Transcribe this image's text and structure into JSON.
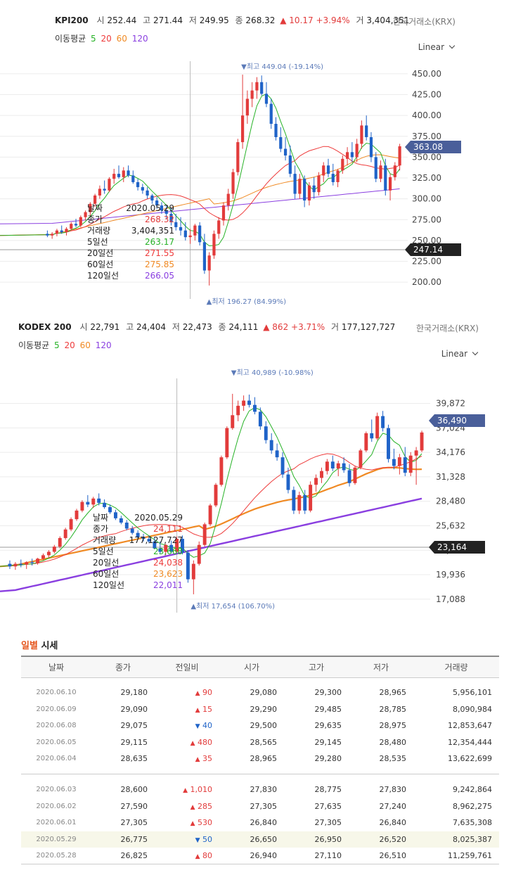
{
  "kpi": {
    "name": "KPI200",
    "open_label": "시",
    "open": "252.44",
    "high_label": "고",
    "high": "271.44",
    "low_label": "저",
    "low": "249.95",
    "close_label": "종",
    "close": "268.32",
    "change": "▲ 10.17 +3.94%",
    "volume_label": "거",
    "volume": "3,404,351",
    "source": "한국거래소(KRX)",
    "ma_label": "이동평균",
    "ma5": "5",
    "ma20": "20",
    "ma60": "60",
    "ma120": "120",
    "scale": "Linear",
    "current_price_tag": "363.08",
    "crosshair_tag": "247.14",
    "max_label": "▼최고 449.04 (-19.14%)",
    "min_label": "▲최저 196.27 (84.99%)",
    "tooltip": [
      {
        "k": "날짜",
        "v": "2020.05.29"
      },
      {
        "k": "종가",
        "v": "268.32"
      },
      {
        "k": "거래량",
        "v": "3,404,351"
      },
      {
        "k": "5일선",
        "v": "263.17"
      },
      {
        "k": "20일선",
        "v": "271.55"
      },
      {
        "k": "60일선",
        "v": "275.85"
      },
      {
        "k": "120일선",
        "v": "266.05"
      }
    ]
  },
  "kodex": {
    "name": "KODEX 200",
    "open_label": "시",
    "open": "22,791",
    "high_label": "고",
    "high": "24,404",
    "low_label": "저",
    "low": "22,473",
    "close_label": "종",
    "close": "24,111",
    "change": "▲ 862 +3.71%",
    "volume_label": "거",
    "volume": "177,127,727",
    "source": "한국거래소(KRX)",
    "ma_label": "이동평균",
    "ma5": "5",
    "ma20": "20",
    "ma60": "60",
    "ma120": "120",
    "scale": "Linear",
    "current_price_tag": "36,490",
    "crosshair_tag": "23,164",
    "max_label": "▼최고 40,989 (-10.98%)",
    "min_label": "▲최저 17,654 (106.70%)",
    "tooltip": [
      {
        "k": "날짜",
        "v": "2020.05.29"
      },
      {
        "k": "종가",
        "v": "24,111"
      },
      {
        "k": "거래량",
        "v": "177,127,727"
      },
      {
        "k": "5일선",
        "v": "23,668"
      },
      {
        "k": "20일선",
        "v": "24,038"
      },
      {
        "k": "60일선",
        "v": "23,623"
      },
      {
        "k": "120일선",
        "v": "22,011"
      }
    ]
  },
  "colors": {
    "up": "#e23b3b",
    "down": "#1f63c8",
    "ma5": "#26b226",
    "ma20": "#ee3b3b",
    "ma60": "#f08a24",
    "ma120": "#8a3fe0",
    "price_tag": "#4a5f9a",
    "cross_tag": "#222222"
  },
  "chart_data": [
    {
      "type": "candlestick",
      "title": "KPI200",
      "ylim": [
        190,
        455
      ],
      "yticks": [
        "450.00",
        "425.00",
        "400.00",
        "375.00",
        "350.00",
        "325.00",
        "300.00",
        "275.00",
        "250.00",
        "225.00",
        "200.00"
      ],
      "ytick_values": [
        450,
        425,
        400,
        375,
        350,
        325,
        300,
        275,
        250,
        225,
        200
      ],
      "ohlc": [
        [
          258,
          262,
          254,
          256
        ],
        [
          256,
          260,
          252,
          258
        ],
        [
          258,
          264,
          255,
          262
        ],
        [
          262,
          268,
          258,
          260
        ],
        [
          260,
          266,
          256,
          264
        ],
        [
          264,
          272,
          262,
          270
        ],
        [
          270,
          276,
          266,
          268
        ],
        [
          268,
          280,
          266,
          278
        ],
        [
          278,
          286,
          274,
          284
        ],
        [
          284,
          296,
          280,
          294
        ],
        [
          294,
          306,
          290,
          304
        ],
        [
          304,
          316,
          300,
          312
        ],
        [
          312,
          322,
          306,
          310
        ],
        [
          310,
          326,
          308,
          324
        ],
        [
          324,
          336,
          318,
          330
        ],
        [
          330,
          340,
          324,
          326
        ],
        [
          326,
          338,
          320,
          334
        ],
        [
          334,
          340,
          326,
          328
        ],
        [
          328,
          334,
          318,
          320
        ],
        [
          320,
          324,
          310,
          314
        ],
        [
          314,
          318,
          306,
          310
        ],
        [
          310,
          314,
          300,
          304
        ],
        [
          304,
          306,
          294,
          298
        ],
        [
          298,
          302,
          288,
          292
        ],
        [
          292,
          296,
          282,
          286
        ],
        [
          286,
          292,
          276,
          282
        ],
        [
          282,
          290,
          268,
          272
        ],
        [
          272,
          282,
          262,
          266
        ],
        [
          266,
          278,
          256,
          262
        ],
        [
          262,
          272,
          250,
          254
        ],
        [
          254,
          264,
          246,
          256
        ],
        [
          256,
          270,
          250,
          268
        ],
        [
          268,
          272,
          244,
          248
        ],
        [
          248,
          258,
          210,
          214
        ],
        [
          214,
          236,
          196,
          232
        ],
        [
          232,
          262,
          228,
          258
        ],
        [
          258,
          278,
          252,
          274
        ],
        [
          274,
          296,
          268,
          292
        ],
        [
          292,
          312,
          286,
          306
        ],
        [
          306,
          336,
          300,
          332
        ],
        [
          332,
          372,
          328,
          368
        ],
        [
          368,
          449,
          360,
          400
        ],
        [
          400,
          430,
          390,
          420
        ],
        [
          420,
          440,
          410,
          430
        ],
        [
          430,
          446,
          420,
          440
        ],
        [
          440,
          448,
          424,
          426
        ],
        [
          426,
          440,
          410,
          414
        ],
        [
          414,
          420,
          384,
          390
        ],
        [
          390,
          398,
          370,
          374
        ],
        [
          374,
          386,
          356,
          360
        ],
        [
          360,
          374,
          346,
          352
        ],
        [
          352,
          364,
          326,
          330
        ],
        [
          330,
          340,
          300,
          306
        ],
        [
          306,
          330,
          300,
          324
        ],
        [
          324,
          328,
          290,
          298
        ],
        [
          298,
          320,
          292,
          316
        ],
        [
          316,
          326,
          300,
          308
        ],
        [
          308,
          332,
          304,
          328
        ],
        [
          328,
          344,
          320,
          340
        ],
        [
          340,
          348,
          326,
          330
        ],
        [
          330,
          342,
          316,
          320
        ],
        [
          320,
          336,
          314,
          334
        ],
        [
          334,
          352,
          330,
          348
        ],
        [
          348,
          362,
          340,
          356
        ],
        [
          356,
          368,
          344,
          350
        ],
        [
          350,
          372,
          344,
          366
        ],
        [
          366,
          394,
          360,
          388
        ],
        [
          388,
          400,
          370,
          374
        ],
        [
          374,
          380,
          344,
          350
        ],
        [
          350,
          356,
          320,
          324
        ],
        [
          324,
          346,
          320,
          340
        ],
        [
          340,
          348,
          304,
          310
        ],
        [
          310,
          330,
          298,
          326
        ],
        [
          326,
          344,
          322,
          340
        ],
        [
          340,
          366,
          334,
          363
        ]
      ],
      "series": [
        {
          "name": "5",
          "color": "#26b226"
        },
        {
          "name": "20",
          "color": "#ee3b3b"
        },
        {
          "name": "60",
          "color": "#f08a24"
        },
        {
          "name": "120",
          "color": "#8a3fe0"
        }
      ]
    },
    {
      "type": "candlestick",
      "title": "KODEX 200",
      "ylim": [
        16500,
        41800
      ],
      "yticks": [
        "39,872",
        "37,024",
        "34,176",
        "31,328",
        "28,480",
        "25,632",
        "22,784",
        "19,936",
        "17,088"
      ],
      "ytick_values": [
        39872,
        37024,
        34176,
        31328,
        28480,
        25632,
        22784,
        19936,
        17088
      ],
      "ohlc": [
        [
          21200,
          21600,
          20600,
          20900
        ],
        [
          20900,
          21400,
          20500,
          21200
        ],
        [
          21200,
          21700,
          20800,
          21100
        ],
        [
          21100,
          21500,
          20600,
          21400
        ],
        [
          21400,
          21800,
          21000,
          21300
        ],
        [
          21300,
          21900,
          21100,
          21800
        ],
        [
          21800,
          22400,
          21600,
          22200
        ],
        [
          22200,
          22800,
          21900,
          22600
        ],
        [
          22600,
          23400,
          22400,
          23200
        ],
        [
          23200,
          24400,
          23000,
          24200
        ],
        [
          24200,
          25400,
          24000,
          25200
        ],
        [
          25200,
          26600,
          25000,
          26400
        ],
        [
          26400,
          27600,
          26200,
          27400
        ],
        [
          27400,
          28600,
          27200,
          28400
        ],
        [
          28400,
          29200,
          27800,
          28100
        ],
        [
          28100,
          29000,
          27700,
          28800
        ],
        [
          28800,
          29400,
          28000,
          28300
        ],
        [
          28300,
          28700,
          27600,
          27800
        ],
        [
          27800,
          28100,
          27000,
          27200
        ],
        [
          27200,
          27500,
          26300,
          26500
        ],
        [
          26500,
          26800,
          25800,
          26000
        ],
        [
          26000,
          26300,
          25100,
          25300
        ],
        [
          25300,
          25600,
          24600,
          24800
        ],
        [
          24800,
          25100,
          24100,
          24300
        ],
        [
          24300,
          24700,
          23800,
          24100
        ],
        [
          24100,
          24500,
          23600,
          23800
        ],
        [
          23800,
          24300,
          22900,
          23000
        ],
        [
          23000,
          23800,
          22400,
          22600
        ],
        [
          22600,
          23500,
          22200,
          23400
        ],
        [
          23400,
          23900,
          22400,
          22600
        ],
        [
          22600,
          24400,
          22500,
          24111
        ],
        [
          24111,
          24500,
          22300,
          22500
        ],
        [
          22500,
          22800,
          19000,
          19400
        ],
        [
          19400,
          21600,
          17654,
          21200
        ],
        [
          21200,
          23800,
          21000,
          23400
        ],
        [
          23400,
          26000,
          23200,
          25800
        ],
        [
          25800,
          28200,
          25600,
          28000
        ],
        [
          28000,
          30600,
          27800,
          30400
        ],
        [
          30400,
          33800,
          30200,
          33600
        ],
        [
          33600,
          37200,
          33400,
          37000
        ],
        [
          37000,
          40989,
          36800,
          38500
        ],
        [
          38500,
          40200,
          37800,
          39600
        ],
        [
          39600,
          40800,
          39000,
          40200
        ],
        [
          40200,
          40900,
          39400,
          39700
        ],
        [
          39700,
          40600,
          38600,
          38900
        ],
        [
          38900,
          39400,
          36800,
          37200
        ],
        [
          37200,
          37800,
          35200,
          35600
        ],
        [
          35600,
          36400,
          34000,
          34400
        ],
        [
          34400,
          35200,
          33200,
          33600
        ],
        [
          33600,
          34200,
          31200,
          31600
        ],
        [
          31600,
          32400,
          29400,
          29800
        ],
        [
          29800,
          30200,
          27000,
          27400
        ],
        [
          27400,
          29600,
          27000,
          29200
        ],
        [
          29200,
          29800,
          27000,
          27400
        ],
        [
          27400,
          30800,
          27200,
          30400
        ],
        [
          30400,
          31600,
          29600,
          31200
        ],
        [
          31200,
          32400,
          30600,
          32000
        ],
        [
          32000,
          33400,
          31600,
          33100
        ],
        [
          33100,
          33800,
          32000,
          32300
        ],
        [
          32300,
          33200,
          31400,
          32900
        ],
        [
          32900,
          33600,
          31800,
          32100
        ],
        [
          32100,
          32800,
          30200,
          30600
        ],
        [
          30600,
          32600,
          30400,
          32400
        ],
        [
          32400,
          34600,
          32200,
          34400
        ],
        [
          34400,
          36600,
          34200,
          36400
        ],
        [
          36400,
          38000,
          35400,
          35800
        ],
        [
          35800,
          38800,
          35600,
          38400
        ],
        [
          38400,
          39000,
          36600,
          37000
        ],
        [
          37000,
          37400,
          33000,
          33400
        ],
        [
          33400,
          34600,
          32200,
          32600
        ],
        [
          32600,
          34000,
          31600,
          33600
        ],
        [
          33600,
          34800,
          31400,
          31800
        ],
        [
          31800,
          34200,
          31400,
          33800
        ],
        [
          33800,
          34800,
          30400,
          34400
        ],
        [
          34400,
          36700,
          34200,
          36490
        ]
      ],
      "series": [
        {
          "name": "5",
          "color": "#26b226"
        },
        {
          "name": "20",
          "color": "#ee3b3b"
        },
        {
          "name": "60",
          "color": "#f08a24"
        },
        {
          "name": "120",
          "color": "#8a3fe0"
        }
      ]
    }
  ],
  "daily": {
    "heading_hl": "일별",
    "heading": "시세",
    "columns": [
      "날짜",
      "종가",
      "전일비",
      "시가",
      "고가",
      "저가",
      "거래량"
    ],
    "rows_a": [
      {
        "date": "2020.06.10",
        "close": "29,180",
        "dir": "up",
        "change": "90",
        "open": "29,080",
        "high": "29,300",
        "low": "28,965",
        "volume": "5,956,101"
      },
      {
        "date": "2020.06.09",
        "close": "29,090",
        "dir": "up",
        "change": "15",
        "open": "29,290",
        "high": "29,485",
        "low": "28,785",
        "volume": "8,090,984"
      },
      {
        "date": "2020.06.08",
        "close": "29,075",
        "dir": "down",
        "change": "40",
        "open": "29,500",
        "high": "29,635",
        "low": "28,975",
        "volume": "12,853,647"
      },
      {
        "date": "2020.06.05",
        "close": "29,115",
        "dir": "up",
        "change": "480",
        "open": "28,565",
        "high": "29,145",
        "low": "28,480",
        "volume": "12,354,444"
      },
      {
        "date": "2020.06.04",
        "close": "28,635",
        "dir": "up",
        "change": "35",
        "open": "28,965",
        "high": "29,280",
        "low": "28,535",
        "volume": "13,622,699"
      }
    ],
    "rows_b": [
      {
        "date": "2020.06.03",
        "close": "28,600",
        "dir": "up",
        "change": "1,010",
        "open": "27,830",
        "high": "28,775",
        "low": "27,830",
        "volume": "9,242,864"
      },
      {
        "date": "2020.06.02",
        "close": "27,590",
        "dir": "up",
        "change": "285",
        "open": "27,305",
        "high": "27,635",
        "low": "27,240",
        "volume": "8,962,275"
      },
      {
        "date": "2020.06.01",
        "close": "27,305",
        "dir": "up",
        "change": "530",
        "open": "26,840",
        "high": "27,305",
        "low": "26,840",
        "volume": "7,635,308"
      },
      {
        "date": "2020.05.29",
        "close": "26,775",
        "dir": "down",
        "change": "50",
        "open": "26,650",
        "high": "26,950",
        "low": "26,520",
        "volume": "8,025,387",
        "highlight": true
      },
      {
        "date": "2020.05.28",
        "close": "26,825",
        "dir": "up",
        "change": "80",
        "open": "26,940",
        "high": "27,110",
        "low": "26,510",
        "volume": "11,259,761"
      }
    ]
  }
}
